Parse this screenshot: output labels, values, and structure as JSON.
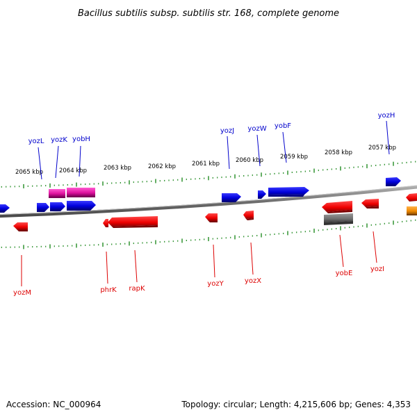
{
  "title": "Bacillus subtilis subsp. subtilis str. 168, complete genome",
  "footer": {
    "accession": "Accession: NC_000964",
    "summary": "Topology: circular; Length: 4,215,606 bp; Genes: 4,353"
  },
  "colors": {
    "forward_label": "#0000cc",
    "reverse_label": "#dd0000",
    "ruler_tick": "#228b22",
    "backbone": "#777777"
  },
  "scale_labels": [
    "2065 kbp",
    "2064 kbp",
    "2063 kbp",
    "2062 kbp",
    "2061 kbp",
    "2060 kbp",
    "2059 kbp",
    "2058 kbp",
    "2057 kbp"
  ],
  "forward_gene_labels": [
    "yozL",
    "yozK",
    "yobH",
    "yozJ",
    "yozW",
    "yobF",
    "yozH"
  ],
  "reverse_gene_labels": [
    "yozM",
    "phrK",
    "rapK",
    "yozY",
    "yozX",
    "yobE",
    "yozI"
  ],
  "gene_colors": [
    "blue",
    "magenta",
    "red",
    "gray",
    "orange"
  ]
}
